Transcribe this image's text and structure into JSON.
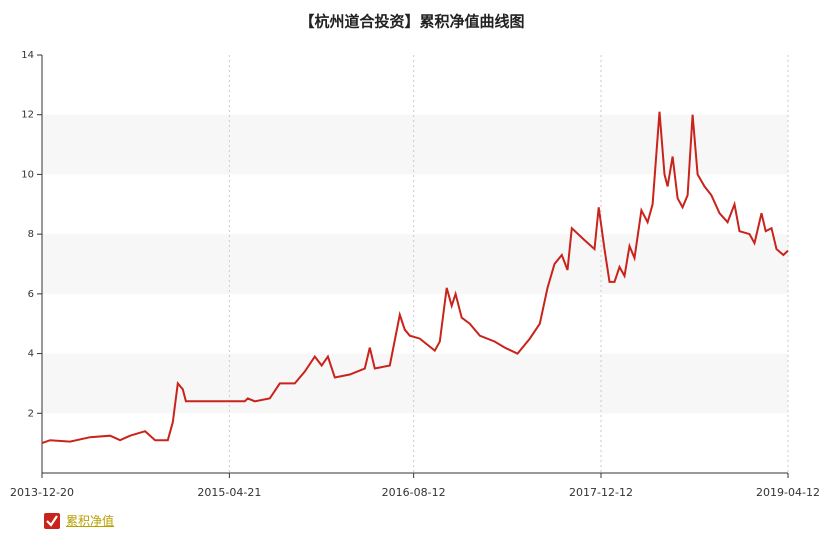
{
  "chart_data": {
    "type": "line",
    "title": "【杭州道合投资】累积净值曲线图",
    "x": [
      "2013-12-20",
      "2014-01-10",
      "2014-03-03",
      "2014-04-24",
      "2014-06-15",
      "2014-07-11",
      "2014-08-06",
      "2014-09-14",
      "2014-10-10",
      "2014-11-12",
      "2014-11-25",
      "2014-12-08",
      "2014-12-21",
      "2014-12-29",
      "2015-05-31",
      "2015-06-08",
      "2015-06-26",
      "2015-08-04",
      "2015-08-30",
      "2015-10-08",
      "2015-11-03",
      "2015-11-29",
      "2015-12-17",
      "2016-01-02",
      "2016-01-20",
      "2016-02-28",
      "2016-04-07",
      "2016-04-20",
      "2016-05-03",
      "2016-06-11",
      "2016-07-07",
      "2016-07-20",
      "2016-08-02",
      "2016-08-28",
      "2016-10-06",
      "2016-10-19",
      "2016-11-06",
      "2016-11-19",
      "2016-11-29",
      "2016-12-15",
      "2017-01-05",
      "2017-01-31",
      "2017-03-11",
      "2017-04-06",
      "2017-05-09",
      "2017-06-10",
      "2017-07-06",
      "2017-07-26",
      "2017-08-13",
      "2017-09-01",
      "2017-09-16",
      "2017-09-27",
      "2017-10-30",
      "2017-11-25",
      "2017-12-06",
      "2017-12-21",
      "2018-01-03",
      "2018-01-16",
      "2018-01-29",
      "2018-02-11",
      "2018-02-24",
      "2018-03-09",
      "2018-03-27",
      "2018-04-12",
      "2018-04-25",
      "2018-05-13",
      "2018-05-26",
      "2018-06-03",
      "2018-06-16",
      "2018-06-29",
      "2018-07-12",
      "2018-07-25",
      "2018-08-07",
      "2018-08-20",
      "2018-09-07",
      "2018-09-25",
      "2018-10-16",
      "2018-11-06",
      "2018-11-24",
      "2018-12-07",
      "2019-01-02",
      "2019-01-15",
      "2019-02-02",
      "2019-02-13",
      "2019-02-28",
      "2019-03-13",
      "2019-03-31",
      "2019-04-12"
    ],
    "series": [
      {
        "name": "累积净值",
        "color": "#c9231b",
        "values": [
          1.0,
          1.1,
          1.05,
          1.2,
          1.25,
          1.1,
          1.25,
          1.4,
          1.1,
          1.1,
          1.7,
          3.0,
          2.8,
          2.4,
          2.4,
          2.5,
          2.4,
          2.5,
          3.0,
          3.0,
          3.4,
          3.9,
          3.6,
          3.9,
          3.2,
          3.3,
          3.5,
          4.2,
          3.5,
          3.6,
          5.3,
          4.8,
          4.6,
          4.5,
          4.1,
          4.4,
          6.2,
          5.6,
          6.0,
          5.2,
          5.0,
          4.6,
          4.4,
          4.2,
          4.0,
          4.5,
          5.0,
          6.2,
          7.0,
          7.3,
          6.8,
          8.2,
          7.8,
          7.5,
          8.9,
          7.5,
          6.4,
          6.4,
          6.9,
          6.6,
          7.6,
          7.2,
          8.8,
          8.4,
          9.0,
          12.1,
          10.0,
          9.6,
          10.6,
          9.2,
          8.9,
          9.3,
          12.0,
          10.0,
          9.6,
          9.3,
          8.7,
          8.4,
          9.0,
          8.1,
          8.0,
          7.7,
          8.7,
          8.1,
          8.2,
          7.5,
          7.3,
          7.45
        ]
      }
    ],
    "xlim": [
      "2013-12-20",
      "2019-04-12"
    ],
    "xticks": [
      "2013-12-20",
      "2015-04-21",
      "2016-08-12",
      "2017-12-12",
      "2019-04-12"
    ],
    "ylim": [
      0,
      14
    ],
    "yticks": [
      2,
      4,
      6,
      8,
      10,
      12,
      14
    ],
    "grid": true
  }
}
